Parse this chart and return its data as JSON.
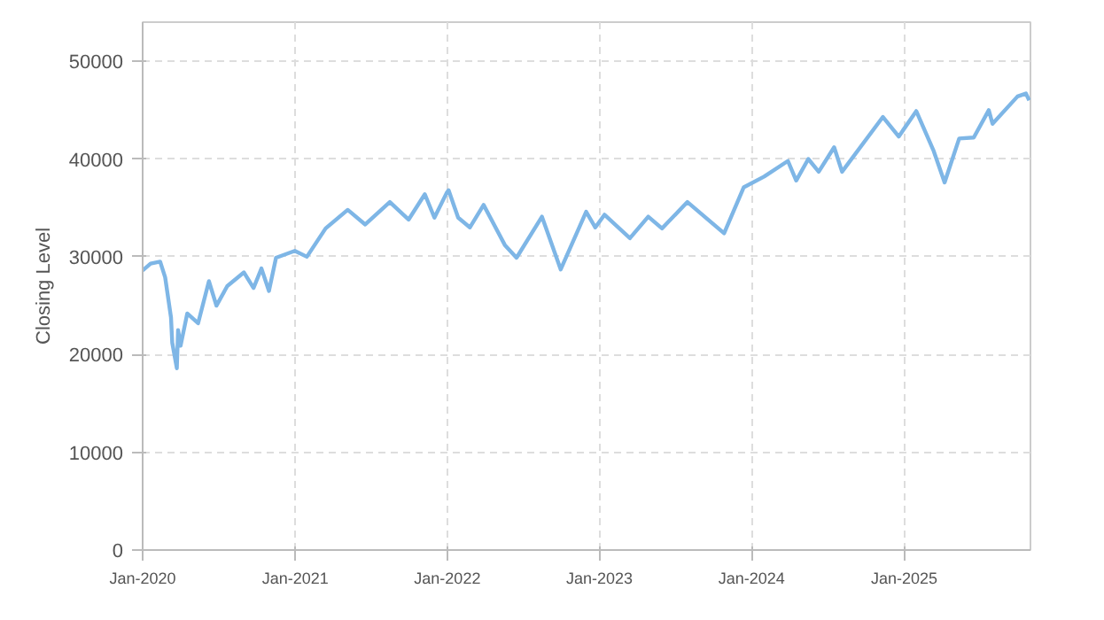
{
  "chart_data": {
    "type": "line",
    "ylabel": "Closing Level",
    "x": [
      "2020-01-01",
      "2020-01-20",
      "2020-02-12",
      "2020-02-24",
      "2020-03-09",
      "2020-03-12",
      "2020-03-23",
      "2020-03-26",
      "2020-04-01",
      "2020-04-17",
      "2020-05-13",
      "2020-06-08",
      "2020-06-26",
      "2020-07-22",
      "2020-08-31",
      "2020-09-23",
      "2020-10-12",
      "2020-10-30",
      "2020-11-16",
      "2020-12-31",
      "2021-01-29",
      "2021-03-15",
      "2021-05-07",
      "2021-06-18",
      "2021-08-16",
      "2021-09-30",
      "2021-11-08",
      "2021-12-01",
      "2021-12-30",
      "2022-01-04",
      "2022-01-27",
      "2022-02-24",
      "2022-03-29",
      "2022-05-19",
      "2022-06-16",
      "2022-08-16",
      "2022-09-30",
      "2022-11-30",
      "2022-12-22",
      "2023-01-13",
      "2023-03-15",
      "2023-04-28",
      "2023-05-31",
      "2023-07-31",
      "2023-10-27",
      "2023-12-13",
      "2024-01-31",
      "2024-03-28",
      "2024-04-17",
      "2024-05-16",
      "2024-06-10",
      "2024-07-17",
      "2024-08-05",
      "2024-11-11",
      "2024-12-19",
      "2025-01-30",
      "2025-03-13",
      "2025-04-08",
      "2025-05-13",
      "2025-06-17",
      "2025-07-23",
      "2025-08-01",
      "2025-09-30",
      "2025-10-20",
      "2025-10-28"
    ],
    "series": [
      {
        "color": "#7eb6e6",
        "values": [
          28600,
          29300,
          29500,
          27900,
          23800,
          21200,
          18600,
          22500,
          20900,
          24200,
          23200,
          27500,
          25000,
          27000,
          28400,
          26800,
          28800,
          26500,
          29900,
          30600,
          30000,
          32900,
          34800,
          33300,
          35600,
          33800,
          36400,
          34000,
          36500,
          36800,
          34000,
          33000,
          35300,
          31200,
          29900,
          34100,
          28700,
          34600,
          33000,
          34300,
          31900,
          34100,
          32900,
          35600,
          32400,
          37100,
          38200,
          39800,
          37800,
          40000,
          38700,
          41200,
          38700,
          44300,
          42300,
          44900,
          40800,
          37600,
          42100,
          42200,
          45000,
          43600,
          46400,
          46700,
          46000
        ]
      }
    ],
    "xlim": [
      "2020-01-01",
      "2025-10-31"
    ],
    "xticks": [
      {
        "value": "2020-01-01",
        "label": "Jan-2020"
      },
      {
        "value": "2021-01-01",
        "label": "Jan-2021"
      },
      {
        "value": "2022-01-01",
        "label": "Jan-2022"
      },
      {
        "value": "2023-01-01",
        "label": "Jan-2023"
      },
      {
        "value": "2024-01-01",
        "label": "Jan-2024"
      },
      {
        "value": "2025-01-01",
        "label": "Jan-2025"
      }
    ],
    "ylim": [
      0,
      54000
    ],
    "yticks": [
      0,
      10000,
      20000,
      30000,
      40000,
      50000
    ],
    "grid": true,
    "line_style": "solid",
    "marker": "none"
  }
}
